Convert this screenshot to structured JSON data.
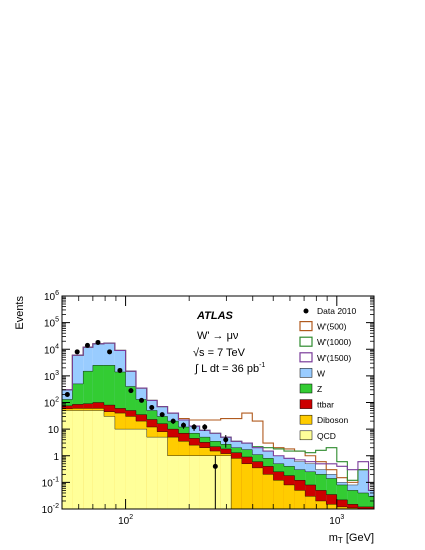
{
  "chart_data": {
    "type": "bar",
    "subtype": "stacked-step-histogram, log-log",
    "xlabel_main": "m",
    "xlabel_sub": "T",
    "xlabel_unit": "[GeV]",
    "ylabel": "Events",
    "xscale": "log",
    "yscale": "log",
    "xlim": [
      50,
      1500
    ],
    "ylim": [
      0.01,
      1000000
    ],
    "x_ticks": [
      {
        "value": 100,
        "base": "10",
        "exp": "2"
      },
      {
        "value": 1000,
        "base": "10",
        "exp": "3"
      }
    ],
    "y_ticks": [
      {
        "value": 0.01,
        "base": "10",
        "exp": "-2"
      },
      {
        "value": 0.1,
        "base": "10",
        "exp": "-1"
      },
      {
        "value": 1,
        "base": "1",
        "exp": ""
      },
      {
        "value": 10,
        "base": "10",
        "exp": ""
      },
      {
        "value": 100,
        "base": "10",
        "exp": "2"
      },
      {
        "value": 1000,
        "base": "10",
        "exp": "3"
      },
      {
        "value": 10000,
        "base": "10",
        "exp": "4"
      },
      {
        "value": 100000,
        "base": "10",
        "exp": "5"
      },
      {
        "value": 1000000,
        "base": "10",
        "exp": "6"
      }
    ],
    "bin_edges": [
      50,
      56,
      63,
      70,
      79,
      89,
      100,
      112,
      126,
      141,
      158,
      178,
      200,
      224,
      251,
      282,
      316,
      355,
      398,
      447,
      501,
      562,
      631,
      708,
      794,
      891,
      1000,
      1122,
      1259,
      1413,
      1500
    ],
    "stacked_series": [
      {
        "name": "W",
        "color": "#99ccff",
        "cumulative": [
          300,
          6000,
          12000,
          16000,
          17000,
          9000,
          1500,
          350,
          120,
          70,
          40,
          22,
          13,
          9,
          7,
          5,
          3.5,
          3,
          2,
          1.5,
          1,
          0.8,
          0.6,
          0.5,
          0.3,
          0.2,
          0.1,
          0.08,
          0.3,
          0.05
        ]
      },
      {
        "name": "Z",
        "color": "#33cc33",
        "cumulative": [
          130,
          500,
          1500,
          2500,
          2500,
          1400,
          400,
          130,
          50,
          30,
          20,
          12,
          7,
          5,
          3.5,
          2.7,
          2,
          1.7,
          1.1,
          0.8,
          0.5,
          0.4,
          0.3,
          0.25,
          0.2,
          0.14,
          0.08,
          0.05,
          0.04,
          0.03
        ]
      },
      {
        "name": "ttbar",
        "color": "#cc0000",
        "cumulative": [
          75,
          85,
          90,
          100,
          80,
          60,
          50,
          35,
          23,
          16,
          10,
          7,
          4.5,
          3.2,
          2.2,
          1.8,
          1.3,
          0.9,
          0.6,
          0.4,
          0.25,
          0.18,
          0.12,
          0.08,
          0.05,
          0.035,
          0.022,
          0.015,
          0.012,
          0.012
        ]
      },
      {
        "name": "Diboson",
        "color": "#ffcc00",
        "cumulative": [
          58,
          60,
          60,
          60,
          45,
          40,
          30,
          20,
          12,
          8,
          5,
          3.5,
          2.5,
          2,
          1.5,
          1.2,
          0.8,
          0.5,
          0.35,
          0.2,
          0.12,
          0.08,
          0.05,
          0.03,
          0.02,
          0.015,
          0.012,
          0.011,
          0.01,
          0.01
        ]
      },
      {
        "name": "QCD",
        "color": "#ffff99",
        "cumulative": [
          50,
          50,
          50,
          50,
          30,
          10,
          10,
          10,
          5,
          5,
          1,
          1,
          1,
          1,
          1,
          1,
          0.01,
          0.01,
          0.01,
          0.01,
          0.01,
          0.01,
          0.01,
          0.01,
          0.01,
          0.01,
          0.01,
          0.01,
          0.01,
          0.01
        ]
      }
    ],
    "signal_series": [
      {
        "name": "W'(500)",
        "color": "#b05a1e",
        "cumulative": [
          300,
          6000,
          12000,
          16000,
          17000,
          9000,
          1500,
          350,
          120,
          70,
          40,
          25,
          22,
          22,
          22,
          25,
          25,
          40,
          20,
          3,
          2,
          1.8,
          1.5,
          1,
          0.6,
          0.3,
          0.15,
          0.1,
          0.3,
          0.05
        ]
      },
      {
        "name": "W'(1000)",
        "color": "#2e8b2e",
        "cumulative": [
          300,
          6000,
          12000,
          16000,
          17000,
          9000,
          1500,
          350,
          120,
          70,
          40,
          22,
          13,
          9,
          7,
          5,
          3.5,
          3,
          2.2,
          2,
          1.8,
          1.5,
          1.5,
          1.3,
          1.6,
          2,
          0.6,
          0.12,
          0.3,
          0.05
        ]
      },
      {
        "name": "W'(1500)",
        "color": "#7a3c9a",
        "cumulative": [
          300,
          6000,
          12000,
          16000,
          17000,
          9000,
          1500,
          350,
          120,
          70,
          40,
          22,
          13,
          9,
          7,
          5,
          3.5,
          3,
          2,
          1.5,
          1,
          0.8,
          0.7,
          0.6,
          0.5,
          0.5,
          0.4,
          0.3,
          0.6,
          0.05
        ]
      }
    ],
    "data_points": {
      "name": "Data 2010",
      "color": "#000000",
      "points": [
        {
          "x": 53,
          "y": 200
        },
        {
          "x": 59,
          "y": 8000
        },
        {
          "x": 66,
          "y": 14000
        },
        {
          "x": 74,
          "y": 18000
        },
        {
          "x": 84,
          "y": 8000
        },
        {
          "x": 94,
          "y": 1600
        },
        {
          "x": 106,
          "y": 280
        },
        {
          "x": 119,
          "y": 120
        },
        {
          "x": 133,
          "y": 65
        },
        {
          "x": 149,
          "y": 35
        },
        {
          "x": 168,
          "y": 20
        },
        {
          "x": 188,
          "y": 14
        },
        {
          "x": 211,
          "y": 12
        },
        {
          "x": 237,
          "y": 12
        },
        {
          "x": 266,
          "y": 0.4
        },
        {
          "x": 298,
          "y": 4
        }
      ]
    },
    "annotations": {
      "experiment": "ATLAS",
      "channel": "W' → μν",
      "energy_prefix": "√s = 7 TeV",
      "lumi_text": "∫ L dt = 36 pb",
      "lumi_exp": "-1"
    },
    "legend": {
      "placement": "top-right",
      "entries": [
        {
          "label": "Data 2010",
          "style": "marker"
        },
        {
          "label": "W'(500)",
          "style": "line",
          "color": "#b05a1e"
        },
        {
          "label": "W'(1000)",
          "style": "line",
          "color": "#2e8b2e"
        },
        {
          "label": "W'(1500)",
          "style": "line",
          "color": "#7a3c9a"
        },
        {
          "label": "W",
          "style": "fill",
          "color": "#99ccff"
        },
        {
          "label": "Z",
          "style": "fill",
          "color": "#33cc33"
        },
        {
          "label": "ttbar",
          "style": "fill",
          "color": "#cc0000"
        },
        {
          "label": "Diboson",
          "style": "fill",
          "color": "#ffcc00"
        },
        {
          "label": "QCD",
          "style": "fill",
          "color": "#ffff99"
        }
      ]
    }
  }
}
